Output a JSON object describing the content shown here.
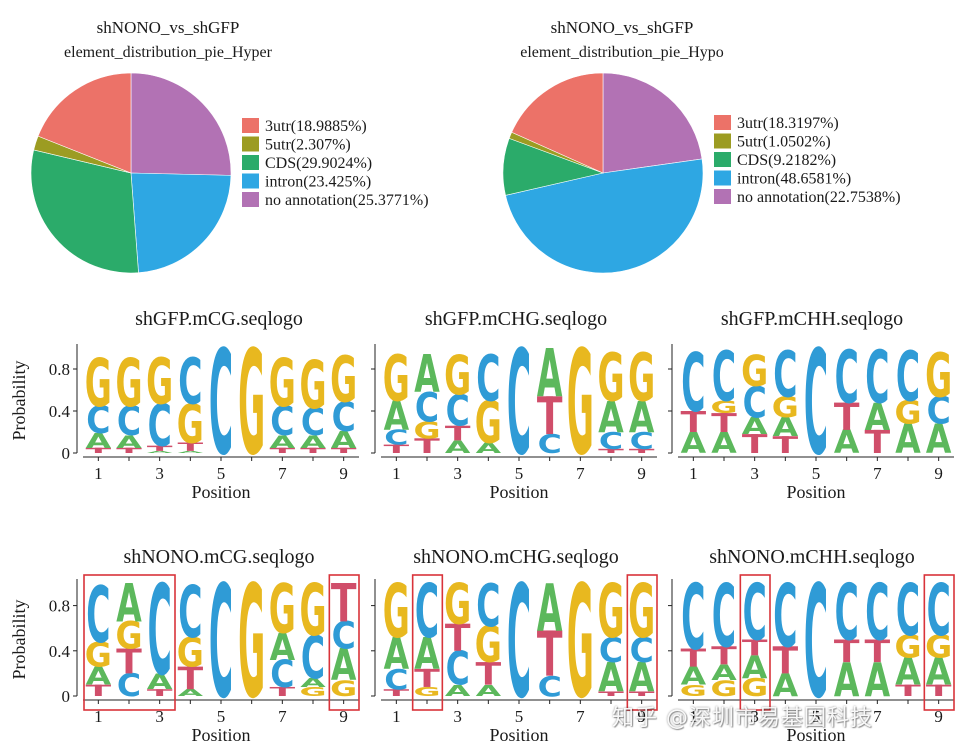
{
  "colors": {
    "A": "#5cb85c",
    "C": "#2f9bd6",
    "G": "#e8b81f",
    "T": "#d04e6a",
    "highlight": "#d9333a"
  },
  "pie_colors": [
    "#ec7268",
    "#9c9c22",
    "#2bab6a",
    "#2ea7e3",
    "#b272b4"
  ],
  "chart_data": [
    {
      "type": "pie",
      "title": "shNONO_vs_shGFP",
      "subtitle": "element_distribution_pie_Hyper",
      "labels": [
        "3utr",
        "5utr",
        "CDS",
        "intron",
        "no annotation"
      ],
      "legend": [
        "3utr(18.9885%)",
        "5utr(2.307%)",
        "CDS(29.9024%)",
        "intron(23.425%)",
        "no annotation(25.3771%)"
      ],
      "values": [
        18.9885,
        2.307,
        29.9024,
        23.425,
        25.3771
      ],
      "order": [
        4,
        3,
        2,
        1,
        0
      ]
    },
    {
      "type": "pie",
      "title": "shNONO_vs_shGFP",
      "subtitle": "element_distribution_pie_Hypo",
      "labels": [
        "3utr",
        "5utr",
        "CDS",
        "intron",
        "no annotation"
      ],
      "legend": [
        "3utr(18.3197%)",
        "5utr(1.0502%)",
        "CDS(9.2182%)",
        "intron(48.6581%)",
        "no annotation(22.7538%)"
      ],
      "values": [
        18.3197,
        1.0502,
        9.2182,
        48.6581,
        22.7538
      ],
      "order": [
        4,
        3,
        2,
        1,
        0
      ]
    },
    {
      "type": "seqlogo",
      "title": "shGFP.mCG.seqlogo",
      "xlabel": "Position",
      "ylabel": "Probability",
      "yticks": [
        "0",
        "0.4",
        "0.8"
      ],
      "xticks": [
        "1",
        "3",
        "5",
        "7",
        "9"
      ],
      "ylim": [
        0,
        1
      ],
      "columns": [
        [
          [
            "T",
            0.05
          ],
          [
            "A",
            0.14
          ],
          [
            "C",
            0.26
          ],
          [
            "G",
            0.46
          ]
        ],
        [
          [
            "T",
            0.05
          ],
          [
            "A",
            0.12
          ],
          [
            "C",
            0.28
          ],
          [
            "G",
            0.46
          ]
        ],
        [
          [
            "A",
            0.02
          ],
          [
            "T",
            0.05
          ],
          [
            "C",
            0.4
          ],
          [
            "G",
            0.44
          ]
        ],
        [
          [
            "A",
            0.02
          ],
          [
            "T",
            0.08
          ],
          [
            "G",
            0.37
          ],
          [
            "C",
            0.44
          ]
        ],
        [
          [
            "C",
            1.0
          ]
        ],
        [
          [
            "G",
            1.0
          ]
        ],
        [
          [
            "T",
            0.05
          ],
          [
            "A",
            0.12
          ],
          [
            "C",
            0.28
          ],
          [
            "G",
            0.46
          ]
        ],
        [
          [
            "T",
            0.05
          ],
          [
            "A",
            0.12
          ],
          [
            "C",
            0.26
          ],
          [
            "G",
            0.46
          ]
        ],
        [
          [
            "T",
            0.05
          ],
          [
            "A",
            0.16
          ],
          [
            "C",
            0.28
          ],
          [
            "G",
            0.44
          ]
        ]
      ]
    },
    {
      "type": "seqlogo",
      "title": "shGFP.mCHG.seqlogo",
      "xlabel": "Position",
      "ylabel": "Probability",
      "yticks": [
        "0",
        "0.4",
        "0.8"
      ],
      "xticks": [
        "1",
        "3",
        "5",
        "7",
        "9"
      ],
      "ylim": [
        0,
        1
      ],
      "columns": [
        [
          [
            "T",
            0.08
          ],
          [
            "C",
            0.14
          ],
          [
            "A",
            0.28
          ],
          [
            "G",
            0.44
          ]
        ],
        [
          [
            "T",
            0.14
          ],
          [
            "G",
            0.16
          ],
          [
            "C",
            0.28
          ],
          [
            "A",
            0.36
          ]
        ],
        [
          [
            "A",
            0.12
          ],
          [
            "T",
            0.14
          ],
          [
            "C",
            0.3
          ],
          [
            "G",
            0.38
          ]
        ],
        [
          [
            "A",
            0.1
          ],
          [
            "G",
            0.4
          ],
          [
            "C",
            0.44
          ]
        ],
        [
          [
            "C",
            1.0
          ]
        ],
        [
          [
            "C",
            0.18
          ],
          [
            "T",
            0.36
          ],
          [
            "A",
            0.46
          ]
        ],
        [
          [
            "G",
            1.0
          ]
        ],
        [
          [
            "T",
            0.04
          ],
          [
            "C",
            0.16
          ],
          [
            "A",
            0.3
          ],
          [
            "G",
            0.46
          ]
        ],
        [
          [
            "T",
            0.04
          ],
          [
            "C",
            0.16
          ],
          [
            "A",
            0.3
          ],
          [
            "G",
            0.46
          ]
        ]
      ]
    },
    {
      "type": "seqlogo",
      "title": "shGFP.mCHH.seqlogo",
      "xlabel": "Position",
      "ylabel": "Probability",
      "yticks": [
        "0",
        "0.4",
        "0.8"
      ],
      "xticks": [
        "1",
        "3",
        "5",
        "7",
        "9"
      ],
      "ylim": [
        0,
        1
      ],
      "columns": [
        [
          [
            "A",
            0.2
          ],
          [
            "T",
            0.2
          ],
          [
            "C",
            0.56
          ]
        ],
        [
          [
            "A",
            0.2
          ],
          [
            "T",
            0.18
          ],
          [
            "G",
            0.12
          ],
          [
            "C",
            0.48
          ]
        ],
        [
          [
            "T",
            0.18
          ],
          [
            "A",
            0.16
          ],
          [
            "C",
            0.3
          ],
          [
            "G",
            0.3
          ]
        ],
        [
          [
            "T",
            0.16
          ],
          [
            "A",
            0.18
          ],
          [
            "G",
            0.2
          ],
          [
            "C",
            0.44
          ]
        ],
        [
          [
            "C",
            1.0
          ]
        ],
        [
          [
            "A",
            0.22
          ],
          [
            "T",
            0.26
          ],
          [
            "C",
            0.5
          ]
        ],
        [
          [
            "T",
            0.22
          ],
          [
            "A",
            0.26
          ],
          [
            "C",
            0.5
          ]
        ],
        [
          [
            "A",
            0.28
          ],
          [
            "G",
            0.22
          ],
          [
            "C",
            0.48
          ]
        ],
        [
          [
            "A",
            0.28
          ],
          [
            "C",
            0.26
          ],
          [
            "G",
            0.42
          ]
        ]
      ]
    },
    {
      "type": "seqlogo",
      "title": "shNONO.mCG.seqlogo",
      "xlabel": "Position",
      "ylabel": "Probability",
      "yticks": [
        "0",
        "0.4",
        "0.8"
      ],
      "xticks": [
        "1",
        "3",
        "5",
        "7",
        "9"
      ],
      "ylim": [
        0,
        1
      ],
      "highlights": [
        [
          1,
          3
        ],
        [
          9,
          9
        ]
      ],
      "columns": [
        [
          [
            "T",
            0.1
          ],
          [
            "A",
            0.16
          ],
          [
            "G",
            0.22
          ],
          [
            "C",
            0.5
          ]
        ],
        [
          [
            "C",
            0.2
          ],
          [
            "T",
            0.22
          ],
          [
            "G",
            0.24
          ],
          [
            "A",
            0.34
          ]
        ],
        [
          [
            "T",
            0.06
          ],
          [
            "A",
            0.14
          ],
          [
            "C",
            0.8
          ]
        ],
        [
          [
            "A",
            0.06
          ],
          [
            "T",
            0.2
          ],
          [
            "G",
            0.26
          ],
          [
            "C",
            0.46
          ]
        ],
        [
          [
            "C",
            1.0
          ]
        ],
        [
          [
            "G",
            1.0
          ]
        ],
        [
          [
            "T",
            0.08
          ],
          [
            "C",
            0.24
          ],
          [
            "A",
            0.24
          ],
          [
            "G",
            0.44
          ]
        ],
        [
          [
            "G",
            0.08
          ],
          [
            "A",
            0.08
          ],
          [
            "C",
            0.38
          ],
          [
            "G",
            0.46
          ]
        ],
        [
          [
            "G",
            0.14
          ],
          [
            "A",
            0.28
          ],
          [
            "C",
            0.24
          ],
          [
            "T",
            0.34
          ]
        ]
      ]
    },
    {
      "type": "seqlogo",
      "title": "shNONO.mCHG.seqlogo",
      "xlabel": "Position",
      "ylabel": "Probability",
      "yticks": [
        "0",
        "0.4",
        "0.8"
      ],
      "xticks": [
        "1",
        "3",
        "5",
        "7",
        "9"
      ],
      "ylim": [
        0,
        1
      ],
      "highlights": [
        [
          2,
          2
        ],
        [
          9,
          9
        ]
      ],
      "columns": [
        [
          [
            "T",
            0.06
          ],
          [
            "C",
            0.18
          ],
          [
            "A",
            0.28
          ],
          [
            "G",
            0.48
          ]
        ],
        [
          [
            "G",
            0.08
          ],
          [
            "T",
            0.16
          ],
          [
            "A",
            0.28
          ],
          [
            "C",
            0.48
          ]
        ],
        [
          [
            "A",
            0.1
          ],
          [
            "C",
            0.3
          ],
          [
            "T",
            0.24
          ],
          [
            "G",
            0.36
          ]
        ],
        [
          [
            "A",
            0.1
          ],
          [
            "T",
            0.2
          ],
          [
            "G",
            0.32
          ],
          [
            "C",
            0.38
          ]
        ],
        [
          [
            "C",
            1.0
          ]
        ],
        [
          [
            "C",
            0.18
          ],
          [
            "T",
            0.4
          ],
          [
            "A",
            0.42
          ]
        ],
        [
          [
            "G",
            1.0
          ]
        ],
        [
          [
            "T",
            0.04
          ],
          [
            "A",
            0.26
          ],
          [
            "C",
            0.22
          ],
          [
            "G",
            0.48
          ]
        ],
        [
          [
            "T",
            0.04
          ],
          [
            "A",
            0.26
          ],
          [
            "C",
            0.22
          ],
          [
            "G",
            0.48
          ]
        ]
      ]
    },
    {
      "type": "seqlogo",
      "title": "shNONO.mCHH.seqlogo",
      "xlabel": "Position",
      "ylabel": "Probability",
      "yticks": [
        "0",
        "0.4",
        "0.8"
      ],
      "xticks": [
        "1",
        "3",
        "5",
        "7",
        "9"
      ],
      "ylim": [
        0,
        1
      ],
      "highlights": [
        [
          3,
          3
        ],
        [
          9,
          9
        ]
      ],
      "columns": [
        [
          [
            "G",
            0.1
          ],
          [
            "A",
            0.16
          ],
          [
            "T",
            0.16
          ],
          [
            "C",
            0.58
          ]
        ],
        [
          [
            "G",
            0.14
          ],
          [
            "A",
            0.14
          ],
          [
            "T",
            0.16
          ],
          [
            "C",
            0.56
          ]
        ],
        [
          [
            "G",
            0.16
          ],
          [
            "A",
            0.2
          ],
          [
            "T",
            0.14
          ],
          [
            "C",
            0.5
          ]
        ],
        [
          [
            "A",
            0.2
          ],
          [
            "T",
            0.24
          ],
          [
            "C",
            0.56
          ]
        ],
        [
          [
            "C",
            1.0
          ]
        ],
        [
          [
            "A",
            0.3
          ],
          [
            "T",
            0.2
          ],
          [
            "C",
            0.5
          ]
        ],
        [
          [
            "A",
            0.3
          ],
          [
            "T",
            0.2
          ],
          [
            "C",
            0.5
          ]
        ],
        [
          [
            "T",
            0.1
          ],
          [
            "A",
            0.24
          ],
          [
            "G",
            0.2
          ],
          [
            "C",
            0.46
          ]
        ],
        [
          [
            "T",
            0.1
          ],
          [
            "A",
            0.24
          ],
          [
            "G",
            0.2
          ],
          [
            "C",
            0.46
          ]
        ]
      ]
    }
  ],
  "watermark": "知乎 @深圳市易基因科技"
}
